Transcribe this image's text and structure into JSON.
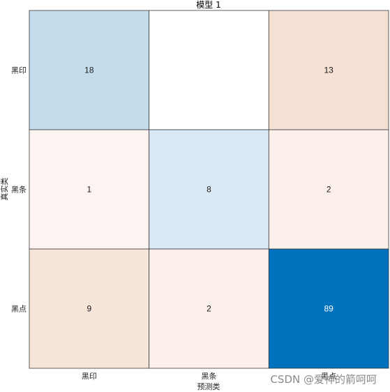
{
  "chart_data": {
    "type": "heatmap",
    "title": "模型 1",
    "xlabel": "预测类",
    "ylabel": "真实类",
    "x_categories": [
      "黑印",
      "黑条",
      "黑点"
    ],
    "y_categories": [
      "黑印",
      "黑条",
      "黑点"
    ],
    "cells": [
      [
        {
          "value": "18",
          "color": "#c5dced"
        },
        {
          "value": "",
          "color": "#ffffff"
        },
        {
          "value": "13",
          "color": "#f6dfd3"
        }
      ],
      [
        {
          "value": "1",
          "color": "#fdf3f0"
        },
        {
          "value": "8",
          "color": "#d9e9f5"
        },
        {
          "value": "2",
          "color": "#fcf0ea"
        }
      ],
      [
        {
          "value": "9",
          "color": "#f8e5da"
        },
        {
          "value": "2",
          "color": "#fcf0ea"
        },
        {
          "value": "89",
          "color": "#0072bd"
        }
      ]
    ]
  },
  "watermark": "CSDN @爱神的箭呵呵"
}
